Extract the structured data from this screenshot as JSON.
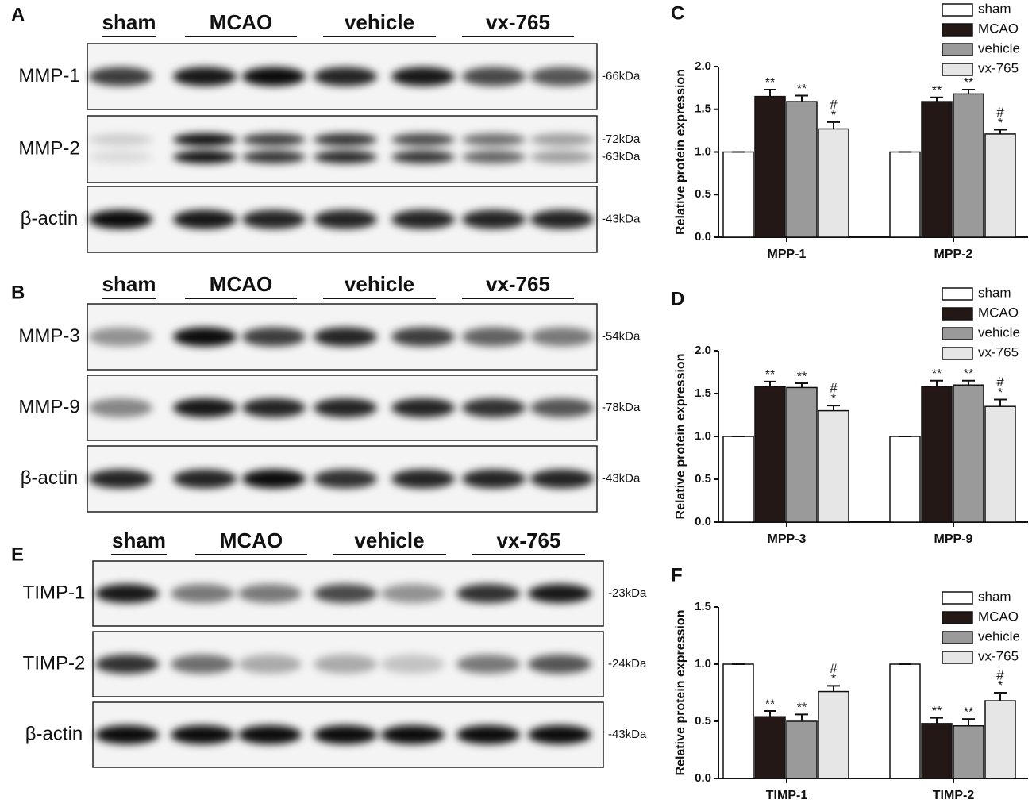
{
  "blots": [
    {
      "panel": "A",
      "groups": [
        "sham",
        "MCAO",
        "vehicle",
        "vx-765"
      ],
      "rows": [
        {
          "label": "MMP-1",
          "markers": [
            "-66kDa"
          ]
        },
        {
          "label": "MMP-2",
          "markers": [
            "-72kDa",
            "-63kDa"
          ]
        },
        {
          "label": "β-actin",
          "markers": [
            "-43kDa"
          ]
        }
      ]
    },
    {
      "panel": "B",
      "groups": [
        "sham",
        "MCAO",
        "vehicle",
        "vx-765"
      ],
      "rows": [
        {
          "label": "MMP-3",
          "markers": [
            "-54kDa"
          ]
        },
        {
          "label": "MMP-9",
          "markers": [
            "-78kDa"
          ]
        },
        {
          "label": "β-actin",
          "markers": [
            "-43kDa"
          ]
        }
      ]
    },
    {
      "panel": "E",
      "groups": [
        "sham",
        "MCAO",
        "vehicle",
        "vx-765"
      ],
      "rows": [
        {
          "label": "TIMP-1",
          "markers": [
            "-23kDa"
          ]
        },
        {
          "label": "TIMP-2",
          "markers": [
            "-24kDa"
          ]
        },
        {
          "label": "β-actin",
          "markers": [
            "-43kDa"
          ]
        }
      ]
    }
  ],
  "chart_data": [
    {
      "type": "bar",
      "panel": "C",
      "y_label": "Relative protein expression",
      "categories": [
        "MPP-1",
        "MPP-2"
      ],
      "ylim": [
        0,
        2
      ],
      "yticks": [
        {
          "value": 0,
          "label": "0.0"
        },
        {
          "value": 0.5,
          "label": "0.5"
        },
        {
          "value": 1,
          "label": "1.0"
        },
        {
          "value": 1.5,
          "label": "1.5"
        },
        {
          "value": 2,
          "label": "2.0"
        }
      ],
      "legend": "upper right",
      "series": [
        {
          "name": "sham",
          "color": "#ffffff",
          "values": [
            1.0,
            1.0
          ],
          "errors": [
            0,
            0
          ],
          "annotations": [
            [],
            []
          ]
        },
        {
          "name": "MCAO",
          "color": "#231815",
          "values": [
            1.65,
            1.59
          ],
          "errors": [
            0.08,
            0.05
          ],
          "annotations": [
            [
              "**"
            ],
            [
              "**"
            ]
          ]
        },
        {
          "name": "vehicle",
          "color": "#9a9a9a",
          "values": [
            1.59,
            1.68
          ],
          "errors": [
            0.07,
            0.05
          ],
          "annotations": [
            [
              "**"
            ],
            [
              "**"
            ]
          ]
        },
        {
          "name": "vx-765",
          "color": "#e6e6e6",
          "values": [
            1.27,
            1.21
          ],
          "errors": [
            0.08,
            0.05
          ],
          "annotations": [
            [
              "#",
              "*"
            ],
            [
              "#",
              "*"
            ]
          ]
        }
      ]
    },
    {
      "type": "bar",
      "panel": "D",
      "y_label": "Relative protein expression",
      "categories": [
        "MPP-3",
        "MPP-9"
      ],
      "ylim": [
        0,
        2
      ],
      "yticks": [
        {
          "value": 0,
          "label": "0.0"
        },
        {
          "value": 0.5,
          "label": "0.5"
        },
        {
          "value": 1,
          "label": "1.0"
        },
        {
          "value": 1.5,
          "label": "1.5"
        },
        {
          "value": 2,
          "label": "2.0"
        }
      ],
      "legend": "upper right",
      "series": [
        {
          "name": "sham",
          "color": "#ffffff",
          "values": [
            1.0,
            1.0
          ],
          "errors": [
            0,
            0
          ],
          "annotations": [
            [],
            []
          ]
        },
        {
          "name": "MCAO",
          "color": "#231815",
          "values": [
            1.58,
            1.58
          ],
          "errors": [
            0.06,
            0.07
          ],
          "annotations": [
            [
              "**"
            ],
            [
              "**"
            ]
          ]
        },
        {
          "name": "vehicle",
          "color": "#9a9a9a",
          "values": [
            1.57,
            1.6
          ],
          "errors": [
            0.05,
            0.05
          ],
          "annotations": [
            [
              "**"
            ],
            [
              "**"
            ]
          ]
        },
        {
          "name": "vx-765",
          "color": "#e6e6e6",
          "values": [
            1.3,
            1.35
          ],
          "errors": [
            0.06,
            0.08
          ],
          "annotations": [
            [
              "#",
              "*"
            ],
            [
              "#",
              "*"
            ]
          ]
        }
      ]
    },
    {
      "type": "bar",
      "panel": "F",
      "y_label": "Relative protein expression",
      "categories": [
        "TIMP-1",
        "TIMP-2"
      ],
      "ylim": [
        0,
        1.5
      ],
      "yticks": [
        {
          "value": 0,
          "label": "0.0"
        },
        {
          "value": 0.5,
          "label": "0.5"
        },
        {
          "value": 1,
          "label": "1.0"
        },
        {
          "value": 1.5,
          "label": "1.5"
        }
      ],
      "legend": "upper right",
      "series": [
        {
          "name": "sham",
          "color": "#ffffff",
          "values": [
            1.0,
            1.0
          ],
          "errors": [
            0,
            0
          ],
          "annotations": [
            [],
            []
          ]
        },
        {
          "name": "MCAO",
          "color": "#231815",
          "values": [
            0.54,
            0.48
          ],
          "errors": [
            0.05,
            0.05
          ],
          "annotations": [
            [
              "**"
            ],
            [
              "**"
            ]
          ]
        },
        {
          "name": "vehicle",
          "color": "#9a9a9a",
          "values": [
            0.5,
            0.46
          ],
          "errors": [
            0.06,
            0.06
          ],
          "annotations": [
            [
              "**"
            ],
            [
              "**"
            ]
          ]
        },
        {
          "name": "vx-765",
          "color": "#e6e6e6",
          "values": [
            0.76,
            0.68
          ],
          "errors": [
            0.05,
            0.07
          ],
          "annotations": [
            [
              "#",
              "*"
            ],
            [
              "#",
              "*"
            ]
          ]
        }
      ]
    }
  ]
}
